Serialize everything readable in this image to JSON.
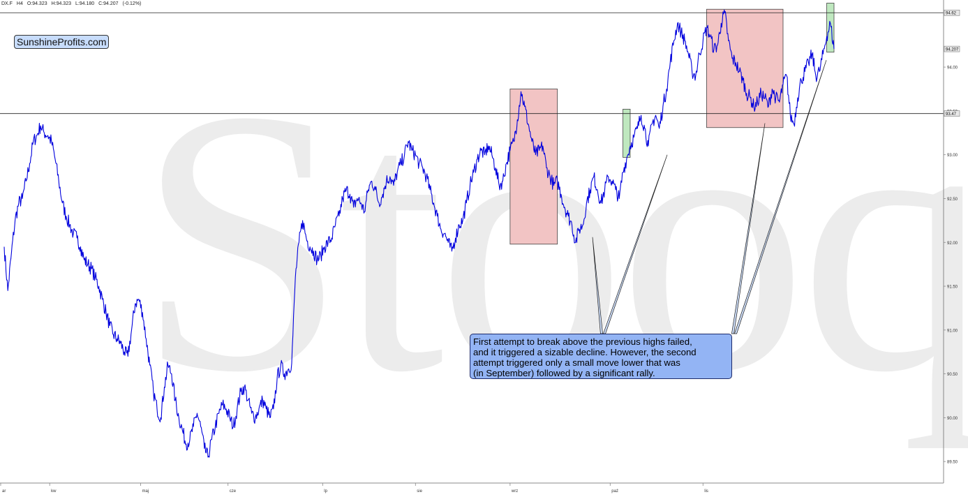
{
  "header": {
    "symbol": "DX.F",
    "interval": "H4",
    "open": "O:94.323",
    "high": "H:94.323",
    "low": "L:94.180",
    "close": "C:94.207",
    "change": "(-0.12%)"
  },
  "logo_text": "SunshineProfits.com",
  "watermark_text": "Stooq",
  "annotation": {
    "lines": [
      "First attempt to break above the previous highs failed,",
      "and it triggered a sizable decline. However, the second",
      "attempt triggered only a small move lower that was",
      "(in September) followed by a significant rally."
    ]
  },
  "colors": {
    "price_line": "#0000dd",
    "red_box_fill": "#f2c4c4",
    "green_box_fill": "#bfe8bf",
    "note_fill": "#93b4f4"
  },
  "chart_data": {
    "type": "line",
    "title": "",
    "xlabel": "",
    "ylabel": "",
    "ylim": [
      89.39,
      94.63
    ],
    "x_ticks": [
      "ar",
      "kw",
      "maj",
      "cze",
      "lp",
      "sie",
      "wrz",
      "paź",
      "lis"
    ],
    "y_ticks": [
      "89.50",
      "90.00",
      "90.50",
      "91.00",
      "91.50",
      "92.00",
      "92.50",
      "93.00",
      "93.50",
      "94.00"
    ],
    "price_tags": [
      "94.62",
      "94.207",
      "93.47"
    ],
    "horizontal_levels": [
      94.62,
      93.47
    ],
    "grid": false,
    "series": [
      {
        "values": [
          91.95,
          91.45,
          91.88,
          92.25,
          92.45,
          92.5,
          92.7,
          92.9,
          93.15,
          93.22,
          93.33,
          93.25,
          93.22,
          93.15,
          92.95,
          92.7,
          92.45,
          92.3,
          92.2,
          92.1,
          92.05,
          91.95,
          91.8,
          91.75,
          91.7,
          91.6,
          91.5,
          91.35,
          91.2,
          91.05,
          90.95,
          90.9,
          90.85,
          90.75,
          90.7,
          91.0,
          91.3,
          91.35,
          91.2,
          90.9,
          90.6,
          90.3,
          90.1,
          90.0,
          90.35,
          90.6,
          90.5,
          90.2,
          90.0,
          89.85,
          89.7,
          89.75,
          89.9,
          90.05,
          89.9,
          89.65,
          89.55,
          89.75,
          89.9,
          90.05,
          90.15,
          90.1,
          90.0,
          89.9,
          90.1,
          90.3,
          90.35,
          90.2,
          90.05,
          90.0,
          90.1,
          90.2,
          90.1,
          90.0,
          90.1,
          90.45,
          90.6,
          90.5,
          90.55,
          90.62,
          91.6,
          92.0,
          92.25,
          92.05,
          91.95,
          91.9,
          91.8,
          91.85,
          91.95,
          92.0,
          92.05,
          92.2,
          92.3,
          92.5,
          92.6,
          92.55,
          92.4,
          92.5,
          92.45,
          92.35,
          92.6,
          92.7,
          92.6,
          92.45,
          92.55,
          92.7,
          92.75,
          92.65,
          92.8,
          92.9,
          93.0,
          93.15,
          93.05,
          93.0,
          92.9,
          92.85,
          92.75,
          92.6,
          92.45,
          92.3,
          92.15,
          92.1,
          92.0,
          91.9,
          92.05,
          92.2,
          92.25,
          92.45,
          92.65,
          92.8,
          92.95,
          93.05,
          93.0,
          93.1,
          93.0,
          92.85,
          92.65,
          92.7,
          92.9,
          93.05,
          93.15,
          93.4,
          93.72,
          93.55,
          93.35,
          93.15,
          93.0,
          93.05,
          93.1,
          92.85,
          92.75,
          92.65,
          92.7,
          92.55,
          92.4,
          92.3,
          92.2,
          92.0,
          92.15,
          92.2,
          92.45,
          92.6,
          92.75,
          92.6,
          92.45,
          92.6,
          92.75,
          92.7,
          92.6,
          92.5,
          92.8,
          92.95,
          93.1,
          93.2,
          93.3,
          93.45,
          93.3,
          93.1,
          93.35,
          93.45,
          93.3,
          93.55,
          93.75,
          94.05,
          94.3,
          94.5,
          94.4,
          94.3,
          94.15,
          93.95,
          93.9,
          94.15,
          94.3,
          94.45,
          94.35,
          94.2,
          94.25,
          94.5,
          94.62,
          94.3,
          94.1,
          94.05,
          93.95,
          93.85,
          93.7,
          93.65,
          93.55,
          93.6,
          93.7,
          93.65,
          93.55,
          93.75,
          93.65,
          93.6,
          93.8,
          93.9,
          93.45,
          93.35,
          93.65,
          93.85,
          93.95,
          94.05,
          94.15,
          93.9,
          93.95,
          94.15,
          94.35,
          94.5,
          94.207
        ]
      }
    ]
  }
}
